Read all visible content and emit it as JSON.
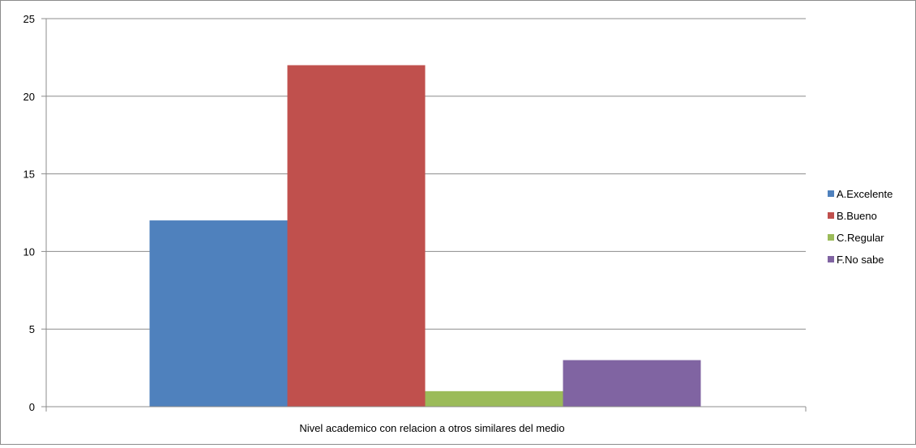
{
  "chart_data": {
    "type": "bar",
    "xlabel": "Nivel academico con relacion a otros similares del medio",
    "ylabel": "",
    "ylim": [
      0,
      25
    ],
    "yticks": [
      0,
      5,
      10,
      15,
      20,
      25
    ],
    "grid": true,
    "legend_position": "right",
    "series": [
      {
        "name": "A.Excelente",
        "value": 12,
        "color": "#4F81BD"
      },
      {
        "name": "B.Bueno",
        "value": 22,
        "color": "#C0504D"
      },
      {
        "name": "C.Regular",
        "value": 1,
        "color": "#9BBB59"
      },
      {
        "name": "F.No sabe",
        "value": 3,
        "color": "#8064A2"
      }
    ]
  }
}
